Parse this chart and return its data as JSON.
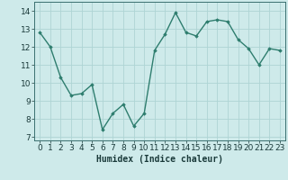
{
  "x": [
    0,
    1,
    2,
    3,
    4,
    5,
    6,
    7,
    8,
    9,
    10,
    11,
    12,
    13,
    14,
    15,
    16,
    17,
    18,
    19,
    20,
    21,
    22,
    23
  ],
  "y": [
    12.8,
    12.0,
    10.3,
    9.3,
    9.4,
    9.9,
    7.4,
    8.3,
    8.8,
    7.6,
    8.3,
    11.8,
    12.7,
    13.9,
    12.8,
    12.6,
    13.4,
    13.5,
    13.4,
    12.4,
    11.9,
    11.0,
    11.9,
    11.8
  ],
  "line_color": "#2e7d6e",
  "marker": "D",
  "marker_size": 1.8,
  "line_width": 1.0,
  "bg_color": "#ceeaea",
  "grid_color": "#aed4d4",
  "xlabel": "Humidex (Indice chaleur)",
  "xlabel_fontsize": 7,
  "tick_fontsize": 6.5,
  "ylim": [
    6.8,
    14.5
  ],
  "yticks": [
    7,
    8,
    9,
    10,
    11,
    12,
    13,
    14
  ],
  "xticks": [
    0,
    1,
    2,
    3,
    4,
    5,
    6,
    7,
    8,
    9,
    10,
    11,
    12,
    13,
    14,
    15,
    16,
    17,
    18,
    19,
    20,
    21,
    22,
    23
  ]
}
